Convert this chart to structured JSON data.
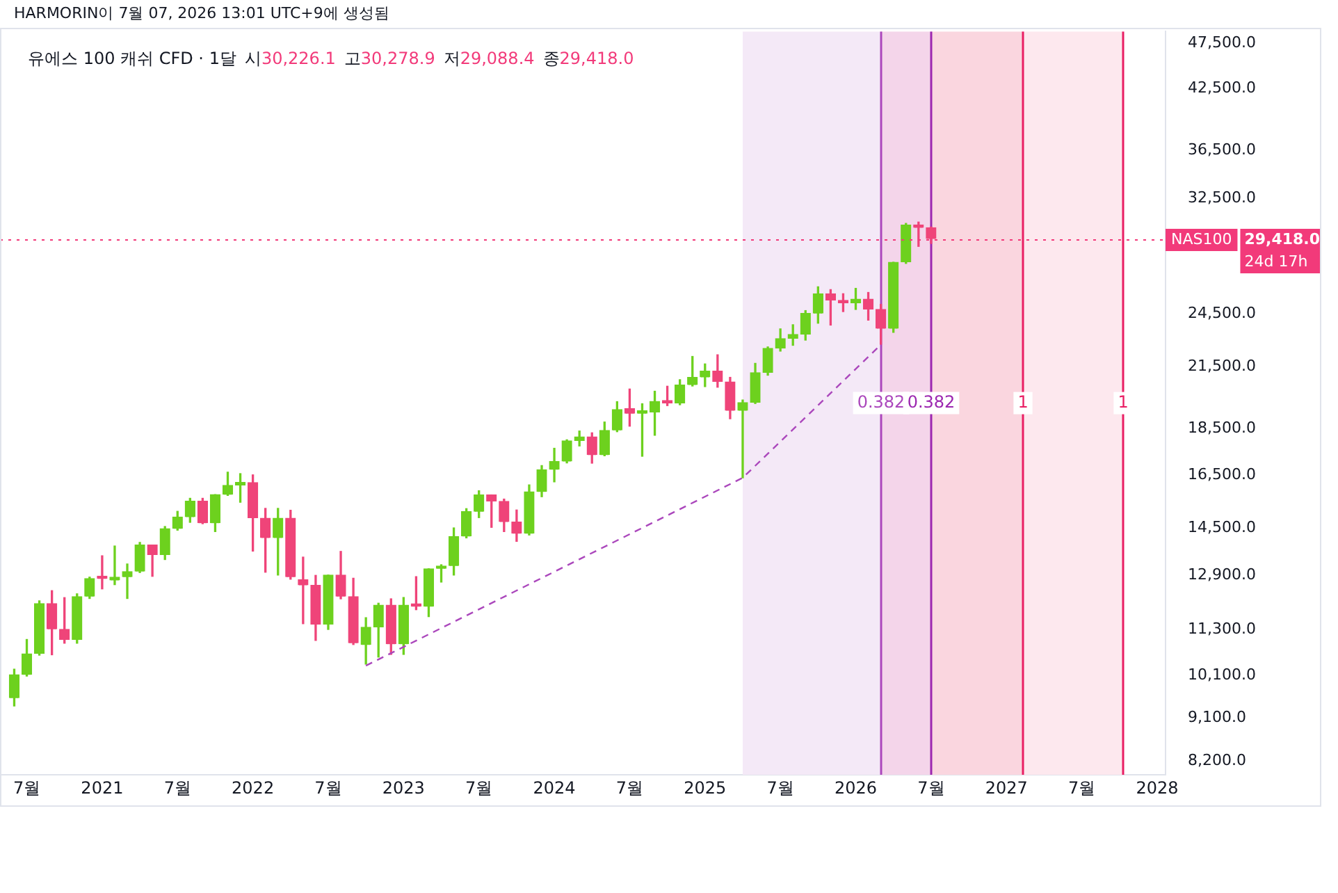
{
  "chart_data": {
    "type": "candlestick",
    "title": "유에스 100 캐쉬 CFD · 1달",
    "annotations": [
      "HARMORIN이 7월 07, 2026 13:01 UTC+9에 생성됨",
      "시30,226.1",
      "고30,278.9",
      "저29,088.4",
      "종29,418.0",
      "29,418.0",
      "24d 17h"
    ],
    "x": [
      "2020-06",
      "2020-07",
      "2020-08",
      "2020-09",
      "2020-10",
      "2020-11",
      "2020-12",
      "2021-01",
      "2021-02",
      "2021-03",
      "2021-04",
      "2021-05",
      "2021-06",
      "2021-07",
      "2021-08",
      "2021-09",
      "2021-10",
      "2021-11",
      "2021-12",
      "2022-01",
      "2022-02",
      "2022-03",
      "2022-04",
      "2022-05",
      "2022-06",
      "2022-07",
      "2022-08",
      "2022-09",
      "2022-10",
      "2022-11",
      "2022-12",
      "2023-01",
      "2023-02",
      "2023-03",
      "2023-04",
      "2023-05",
      "2023-06",
      "2023-07",
      "2023-08",
      "2023-09",
      "2023-10",
      "2023-11",
      "2023-12",
      "2024-01",
      "2024-02",
      "2024-03",
      "2024-04",
      "2024-05",
      "2024-06",
      "2024-07",
      "2024-08",
      "2024-09",
      "2024-10",
      "2024-11",
      "2024-12",
      "2025-01",
      "2025-02",
      "2025-03",
      "2025-04",
      "2025-05",
      "2025-06",
      "2025-07",
      "2025-08",
      "2025-09",
      "2025-10",
      "2025-11",
      "2025-12",
      "2026-01",
      "2026-02",
      "2026-03",
      "2026-04",
      "2026-05",
      "2026-06",
      "2026-07"
    ],
    "ohlc": [
      [
        9562,
        10262,
        9378,
        10123
      ],
      [
        10123,
        11036,
        10090,
        10655
      ],
      [
        10655,
        12130,
        10620,
        12048
      ],
      [
        12048,
        12436,
        10630,
        11314
      ],
      [
        11314,
        12226,
        10935,
        11025
      ],
      [
        11025,
        12340,
        10935,
        12256
      ],
      [
        12256,
        12855,
        12200,
        12811
      ],
      [
        12811,
        13544,
        12490,
        12800
      ],
      [
        12750,
        13872,
        12620,
        12855
      ],
      [
        12855,
        13275,
        12200,
        13030
      ],
      [
        13030,
        13995,
        13000,
        13905
      ],
      [
        13905,
        13905,
        12880,
        13570
      ],
      [
        13570,
        14550,
        13420,
        14470
      ],
      [
        14470,
        15100,
        14420,
        14890
      ],
      [
        14890,
        15590,
        14700,
        15480
      ],
      [
        15480,
        15590,
        14650,
        14670
      ],
      [
        14670,
        15730,
        14370,
        15730
      ],
      [
        15730,
        16620,
        15700,
        16090
      ],
      [
        16090,
        16560,
        15440,
        16210
      ],
      [
        16200,
        16510,
        13700,
        14850
      ],
      [
        14850,
        15210,
        13010,
        14150
      ],
      [
        14150,
        15210,
        12920,
        14850
      ],
      [
        14850,
        15140,
        12790,
        12855
      ],
      [
        12770,
        13500,
        11470,
        12600
      ],
      [
        12600,
        12910,
        11010,
        11445
      ],
      [
        11445,
        12920,
        11310,
        12920
      ],
      [
        12920,
        13690,
        12190,
        12256
      ],
      [
        12256,
        12820,
        10900,
        10935
      ],
      [
        10890,
        11640,
        10390,
        11370
      ],
      [
        11370,
        12060,
        10570,
        12000
      ],
      [
        12000,
        12190,
        10640,
        10910
      ],
      [
        10910,
        12230,
        10640,
        12000
      ],
      [
        12010,
        12870,
        11870,
        11960
      ],
      [
        11960,
        13120,
        11670,
        13120
      ],
      [
        13120,
        13250,
        12700,
        13210
      ],
      [
        13210,
        14500,
        12920,
        14200
      ],
      [
        14200,
        15200,
        14150,
        15090
      ],
      [
        15090,
        15880,
        14870,
        15720
      ],
      [
        15720,
        15720,
        14520,
        15470
      ],
      [
        15470,
        15560,
        14370,
        14710
      ],
      [
        14710,
        15150,
        14030,
        14300
      ],
      [
        14300,
        16110,
        14250,
        15840
      ],
      [
        15840,
        16890,
        15650,
        16720
      ],
      [
        16720,
        17620,
        16230,
        17060
      ],
      [
        17060,
        17990,
        17000,
        17940
      ],
      [
        17940,
        18380,
        17720,
        18120
      ],
      [
        18120,
        18300,
        16990,
        17330
      ],
      [
        17330,
        18790,
        17300,
        18410
      ],
      [
        18410,
        19750,
        18350,
        19370
      ],
      [
        19420,
        20370,
        18600,
        19180
      ],
      [
        19180,
        19650,
        17280,
        19240
      ],
      [
        19240,
        20260,
        18190,
        19760
      ],
      [
        19760,
        20510,
        19560,
        19670
      ],
      [
        19670,
        20840,
        19600,
        20570
      ],
      [
        20570,
        22060,
        20520,
        20960
      ],
      [
        20960,
        21660,
        20490,
        21280
      ],
      [
        21280,
        22150,
        20460,
        20730
      ],
      [
        20730,
        20960,
        18940,
        19320
      ],
      [
        19320,
        19830,
        16390,
        19700
      ],
      [
        19700,
        21690,
        19660,
        21200
      ],
      [
        21200,
        22580,
        21070,
        22500
      ],
      [
        22500,
        23600,
        22350,
        23040
      ],
      [
        23040,
        23840,
        22670,
        23280
      ],
      [
        23280,
        24680,
        22960,
        24510
      ],
      [
        24510,
        26160,
        23930,
        25720
      ],
      [
        25720,
        25980,
        23820,
        25300
      ],
      [
        25300,
        25720,
        24620,
        25130
      ],
      [
        25130,
        26060,
        24750,
        25380
      ],
      [
        25380,
        25800,
        24110,
        24750
      ],
      [
        24750,
        25060,
        22730,
        23610
      ],
      [
        23610,
        27780,
        23400,
        27780
      ],
      [
        27780,
        30550,
        27700,
        30420
      ],
      [
        30420,
        30650,
        28880,
        30226
      ],
      [
        30226.1,
        30278.9,
        29088.4,
        29418.0
      ]
    ],
    "colors": [
      "#6dd11e",
      "#6dd11e",
      "#6dd11e",
      "#ef4479",
      "#ef4479",
      "#6dd11e",
      "#6dd11e",
      "#ef4479",
      "#6dd11e",
      "#6dd11e",
      "#6dd11e",
      "#ef4479",
      "#6dd11e",
      "#6dd11e",
      "#6dd11e",
      "#ef4479",
      "#6dd11e",
      "#6dd11e",
      "#6dd11e",
      "#ef4479",
      "#ef4479",
      "#6dd11e",
      "#ef4479",
      "#ef4479",
      "#ef4479",
      "#6dd11e",
      "#ef4479",
      "#ef4479",
      "#6dd11e",
      "#6dd11e",
      "#ef4479",
      "#6dd11e",
      "#ef4479",
      "#6dd11e",
      "#6dd11e",
      "#6dd11e",
      "#6dd11e",
      "#6dd11e",
      "#ef4479",
      "#ef4479",
      "#ef4479",
      "#6dd11e",
      "#6dd11e",
      "#6dd11e",
      "#6dd11e",
      "#6dd11e",
      "#ef4479",
      "#6dd11e",
      "#6dd11e",
      "#ef4479",
      "#6dd11e",
      "#6dd11e",
      "#ef4479",
      "#6dd11e",
      "#6dd11e",
      "#6dd11e",
      "#ef4479",
      "#ef4479",
      "#6dd11e",
      "#6dd11e",
      "#6dd11e",
      "#6dd11e",
      "#6dd11e",
      "#6dd11e",
      "#6dd11e",
      "#ef4479",
      "#ef4479",
      "#6dd11e",
      "#ef4479",
      "#ef4479",
      "#6dd11e",
      "#6dd11e",
      "#ef4479",
      "#ef4479"
    ],
    "series": [
      {
        "type": "line",
        "color": "#ab47bc",
        "line_style": "dashed",
        "marker": "none",
        "x": [
          "2022-10",
          "2025-04",
          "2026-03"
        ],
        "values": [
          10350,
          16390,
          22700
        ]
      }
    ],
    "log": "y",
    "xlim": [
      "2020-04-27",
      "2028-01-21"
    ],
    "xticks": [
      {
        "value": "2020-07",
        "label": "7월"
      },
      {
        "value": "2021-01",
        "label": "2021"
      },
      {
        "value": "2021-07",
        "label": "7월"
      },
      {
        "value": "2022-01",
        "label": "2022"
      },
      {
        "value": "2022-07",
        "label": "7월"
      },
      {
        "value": "2023-01",
        "label": "2023"
      },
      {
        "value": "2023-07",
        "label": "7월"
      },
      {
        "value": "2024-01",
        "label": "2024"
      },
      {
        "value": "2024-07",
        "label": "7월"
      },
      {
        "value": "2025-01",
        "label": "2025"
      },
      {
        "value": "2025-07",
        "label": "7월"
      },
      {
        "value": "2026-01",
        "label": "2026"
      },
      {
        "value": "2026-07",
        "label": "7월"
      },
      {
        "value": "2027-01",
        "label": "2027"
      },
      {
        "value": "2027-07",
        "label": "7월"
      },
      {
        "value": "2028-01",
        "label": "2028"
      }
    ],
    "ylim": [
      7925,
      48870
    ],
    "yticks": [
      {
        "value": 8200,
        "label": "8,200.0"
      },
      {
        "value": 9100,
        "label": "9,100.0"
      },
      {
        "value": 10100,
        "label": "10,100.0"
      },
      {
        "value": 11300,
        "label": "11,300.0"
      },
      {
        "value": 12900,
        "label": "12,900.0"
      },
      {
        "value": 14500,
        "label": "14,500.0"
      },
      {
        "value": 16500,
        "label": "16,500.0"
      },
      {
        "value": 18500,
        "label": "18,500.0"
      },
      {
        "value": 21500,
        "label": "21,500.0"
      },
      {
        "value": 24500,
        "label": "24,500.0"
      },
      {
        "value": 32500,
        "label": "32,500.0"
      },
      {
        "value": 36500,
        "label": "36,500.0"
      },
      {
        "value": 42500,
        "label": "42,500.0"
      },
      {
        "value": 47500,
        "label": "47,500.0"
      }
    ],
    "bands": [
      {
        "axis": "x",
        "from": "2025-04",
        "to": "2026-03",
        "color": "#f4e9f7"
      },
      {
        "axis": "x",
        "from": "2026-03",
        "to": "2026-07",
        "color": "#f4d5ea"
      },
      {
        "axis": "x",
        "from": "2026-07",
        "to": "2027-02-10",
        "color": "#fad6df"
      },
      {
        "axis": "x",
        "from": "2027-02-10",
        "to": "2027-10-08",
        "color": "#fde8ee"
      }
    ],
    "ref_lines": [
      {
        "axis": "x",
        "value": "2026-03",
        "label": "0.382",
        "color": "#ab47bc"
      },
      {
        "axis": "x",
        "value": "2026-07",
        "label": "0.382",
        "color": "#9c27b0"
      },
      {
        "axis": "x",
        "value": "2027-02-10",
        "label": "1",
        "color": "#e91e63"
      },
      {
        "axis": "x",
        "value": "2027-10-08",
        "label": "1",
        "color": "#e91e63"
      },
      {
        "axis": "y",
        "value": 29418.0,
        "label": "NAS100",
        "color": "#f23a7a",
        "line_style": "dotted"
      }
    ],
    "grid": false,
    "legend": false
  }
}
